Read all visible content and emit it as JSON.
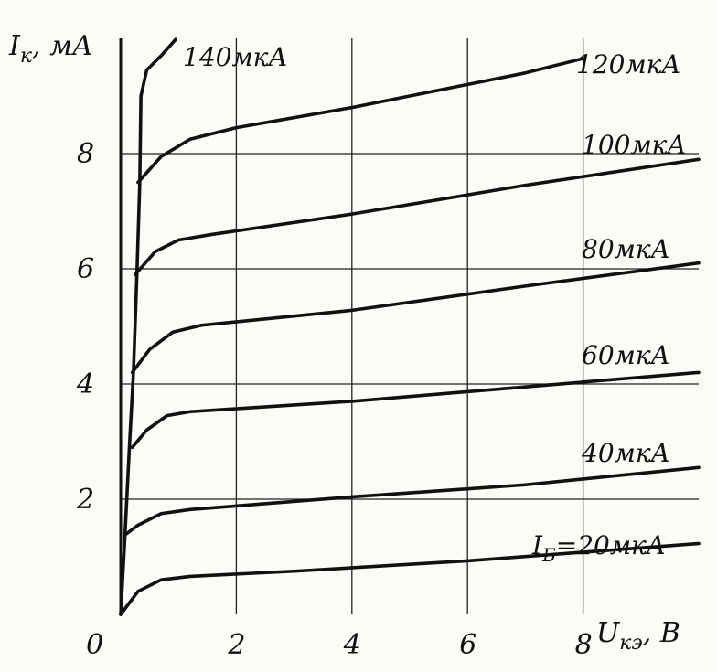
{
  "chart_data": {
    "type": "line",
    "x_axis": {
      "label_var": "U",
      "label_sub": "кэ",
      "label_unit": ", B",
      "ticks": [
        "0",
        "2",
        "4",
        "6",
        "8"
      ],
      "range": [
        0,
        10
      ]
    },
    "y_axis": {
      "label_var": "I",
      "label_sub": "к",
      "label_unit": ", мА",
      "ticks": [
        "2",
        "4",
        "6",
        "8"
      ],
      "range": [
        0,
        10
      ]
    },
    "grid": true,
    "series": [
      {
        "name": "I",
        "name_sub": "Б",
        "name_rest": "=20мкА",
        "points": [
          [
            0,
            0
          ],
          [
            0.3,
            0.4
          ],
          [
            0.7,
            0.6
          ],
          [
            1.2,
            0.66
          ],
          [
            3,
            0.75
          ],
          [
            6,
            0.93
          ],
          [
            10,
            1.23
          ]
        ]
      },
      {
        "name": "40мкА",
        "points": [
          [
            0.1,
            1.4
          ],
          [
            0.3,
            1.55
          ],
          [
            0.7,
            1.75
          ],
          [
            1.2,
            1.82
          ],
          [
            4,
            2.04
          ],
          [
            7,
            2.25
          ],
          [
            10,
            2.55
          ]
        ]
      },
      {
        "name": "60мкА",
        "points": [
          [
            0.2,
            2.9
          ],
          [
            0.45,
            3.2
          ],
          [
            0.8,
            3.45
          ],
          [
            1.2,
            3.52
          ],
          [
            4,
            3.7
          ],
          [
            7,
            3.95
          ],
          [
            10,
            4.2
          ]
        ]
      },
      {
        "name": "80мкА",
        "points": [
          [
            0.2,
            4.2
          ],
          [
            0.5,
            4.6
          ],
          [
            0.9,
            4.9
          ],
          [
            1.4,
            5.02
          ],
          [
            4,
            5.28
          ],
          [
            7,
            5.7
          ],
          [
            10,
            6.1
          ]
        ]
      },
      {
        "name": "100мкА",
        "points": [
          [
            0.25,
            5.9
          ],
          [
            0.6,
            6.3
          ],
          [
            1.0,
            6.5
          ],
          [
            1.6,
            6.6
          ],
          [
            4,
            6.95
          ],
          [
            7,
            7.45
          ],
          [
            10,
            7.9
          ]
        ]
      },
      {
        "name": "120мкА",
        "points": [
          [
            0.3,
            7.5
          ],
          [
            0.7,
            7.95
          ],
          [
            1.2,
            8.25
          ],
          [
            2,
            8.45
          ],
          [
            4,
            8.8
          ],
          [
            7,
            9.4
          ],
          [
            8,
            9.65
          ]
        ]
      },
      {
        "name": "140мкА",
        "points": [
          [
            0.35,
            9.0
          ],
          [
            0.45,
            9.45
          ],
          [
            0.7,
            9.7
          ],
          [
            0.95,
            9.98
          ]
        ]
      }
    ],
    "cutoff_line": [
      [
        0,
        0
      ],
      [
        0.07,
        1.3
      ],
      [
        0.15,
        2.9
      ],
      [
        0.22,
        4.2
      ],
      [
        0.28,
        5.9
      ],
      [
        0.33,
        7.5
      ],
      [
        0.35,
        9.0
      ]
    ]
  }
}
